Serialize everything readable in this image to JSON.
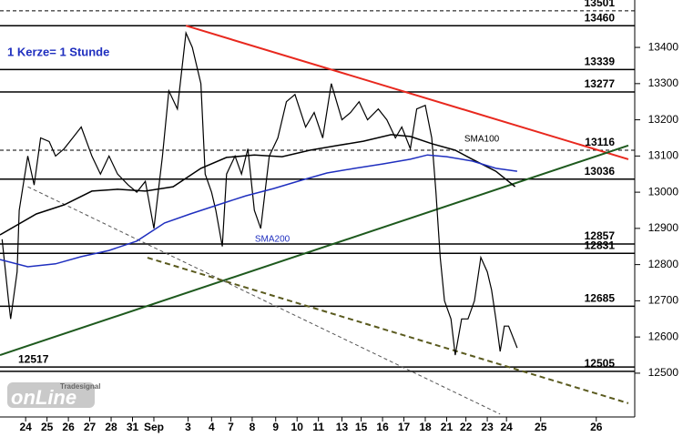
{
  "chart_data": {
    "type": "line",
    "annotation": "1 Kerze= 1 Stunde",
    "watermark": [
      "Tradesignal",
      "onLine"
    ],
    "xlim": [
      -1.2,
      28.5
    ],
    "ylim": [
      12379,
      13531
    ],
    "yticks": [
      12500,
      12600,
      12700,
      12800,
      12900,
      13000,
      13100,
      13200,
      13300,
      13400
    ],
    "xticks": [
      {
        "value": 0,
        "label": "24"
      },
      {
        "value": 1.0,
        "label": "25"
      },
      {
        "value": 2.0,
        "label": "26"
      },
      {
        "value": 3.0,
        "label": "27"
      },
      {
        "value": 4.0,
        "label": "28"
      },
      {
        "value": 5.0,
        "label": "31"
      },
      {
        "value": 6.0,
        "label": "Sep"
      },
      {
        "value": 7.6,
        "label": "3"
      },
      {
        "value": 8.7,
        "label": "4"
      },
      {
        "value": 9.6,
        "label": "7"
      },
      {
        "value": 10.6,
        "label": "8"
      },
      {
        "value": 11.7,
        "label": "9"
      },
      {
        "value": 12.7,
        "label": "10"
      },
      {
        "value": 13.7,
        "label": "11"
      },
      {
        "value": 14.8,
        "label": "13"
      },
      {
        "value": 15.7,
        "label": "15"
      },
      {
        "value": 16.7,
        "label": "16"
      },
      {
        "value": 17.7,
        "label": "17"
      },
      {
        "value": 18.7,
        "label": "18"
      },
      {
        "value": 19.7,
        "label": "21"
      },
      {
        "value": 20.6,
        "label": "22"
      },
      {
        "value": 21.6,
        "label": "23"
      },
      {
        "value": 22.5,
        "label": "24"
      },
      {
        "value": 24.1,
        "label": "25"
      },
      {
        "value": 26.7,
        "label": "26"
      }
    ],
    "series": [
      {
        "color": "#000000",
        "x": [
          -1.1,
          -0.8,
          -0.7,
          -0.4,
          -0.3,
          0.1,
          0.4,
          0.7,
          1.1,
          1.4,
          1.8,
          2.2,
          2.6,
          3.1,
          3.5,
          3.9,
          4.3,
          4.8,
          5.2,
          5.6,
          6.0,
          6.4,
          6.7,
          7.1,
          7.5,
          7.8,
          8.2,
          8.4,
          8.7,
          8.9,
          9.2,
          9.4,
          9.8,
          10.1,
          10.4,
          10.7,
          11.0,
          11.4,
          11.8,
          12.2,
          12.6,
          13.1,
          13.5,
          13.9,
          14.3,
          14.8,
          15.2,
          15.6,
          16.0,
          16.5,
          16.9,
          17.3,
          17.6,
          18.0,
          18.3,
          18.7,
          19.0,
          19.2,
          19.4,
          19.6,
          19.9,
          20.1,
          20.4,
          20.7,
          21.0,
          21.3,
          21.6,
          21.8,
          22.0,
          22.2,
          22.4,
          22.6,
          23.0
        ],
        "values": [
          12870,
          12700,
          12650,
          12780,
          12950,
          13100,
          13020,
          13150,
          13140,
          13100,
          13120,
          13150,
          13180,
          13100,
          13050,
          13100,
          13050,
          13020,
          13000,
          13030,
          12900,
          13100,
          13280,
          13230,
          13440,
          13400,
          13300,
          13050,
          13000,
          12950,
          12850,
          13050,
          13100,
          13050,
          13120,
          12950,
          12900,
          13100,
          13150,
          13250,
          13270,
          13180,
          13220,
          13150,
          13300,
          13200,
          13220,
          13250,
          13200,
          13230,
          13200,
          13150,
          13180,
          13120,
          13230,
          13240,
          13150,
          13000,
          12820,
          12700,
          12650,
          12550,
          12650,
          12650,
          12700,
          12820,
          12780,
          12730,
          12650,
          12560,
          12630,
          12630,
          12570
        ]
      },
      {
        "name": "SMA100",
        "color": "#000000",
        "x": [
          -1.2,
          0.5,
          1.8,
          3.1,
          4.3,
          5.6,
          6.9,
          8.2,
          9.4,
          10.7,
          12.0,
          13.3,
          14.6,
          15.8,
          17.1,
          18.0,
          19.0,
          20.1,
          20.9,
          22.0,
          22.9
        ],
        "values": [
          12882,
          12940,
          12965,
          13003,
          13008,
          13003,
          13015,
          13066,
          13096,
          13103,
          13098,
          13116,
          13129,
          13141,
          13159,
          13154,
          13134,
          13116,
          13091,
          13058,
          13015
        ]
      },
      {
        "name": "SMA200",
        "color": "#1f2fbf",
        "x": [
          -1.2,
          0.1,
          1.4,
          2.6,
          3.9,
          5.2,
          6.5,
          7.7,
          9.0,
          10.3,
          11.6,
          12.9,
          14.1,
          15.4,
          16.7,
          18.0,
          18.8,
          19.7,
          20.9,
          22.0,
          23.0
        ],
        "values": [
          12814,
          12794,
          12802,
          12822,
          12839,
          12865,
          12915,
          12940,
          12965,
          12990,
          13010,
          13033,
          13053,
          13066,
          13078,
          13091,
          13103,
          13098,
          13086,
          13066,
          13058
        ]
      }
    ],
    "levels": [
      {
        "value": 13501,
        "dash": true
      },
      {
        "value": 13460,
        "dash": false
      },
      {
        "value": 13339,
        "dash": false
      },
      {
        "value": 13277,
        "dash": false
      },
      {
        "value": 13116,
        "dash": true
      },
      {
        "value": 13036,
        "dash": false
      },
      {
        "value": 12857,
        "dash": false
      },
      {
        "value": 12831,
        "dash": false
      },
      {
        "value": 12685,
        "dash": false
      },
      {
        "value": 12517,
        "dash": false,
        "label_side": "left"
      },
      {
        "value": 12505,
        "dash": false
      }
    ],
    "trendlines": [
      {
        "color": "#e8281e",
        "width": 2,
        "x": [
          7.5,
          28.2
        ],
        "values": [
          13460,
          13091
        ]
      },
      {
        "color": "#1e5a1e",
        "width": 2,
        "x": [
          -1.2,
          28.2
        ],
        "values": [
          12550,
          13129
        ]
      },
      {
        "color": "#555555",
        "width": 1,
        "dash": "4 3",
        "x": [
          0.1,
          22.2
        ],
        "values": [
          13015,
          12387
        ]
      },
      {
        "color": "#5a5a1e",
        "width": 2,
        "dash": "6 4",
        "x": [
          5.7,
          28.2
        ],
        "values": [
          12819,
          12417
        ]
      }
    ]
  }
}
